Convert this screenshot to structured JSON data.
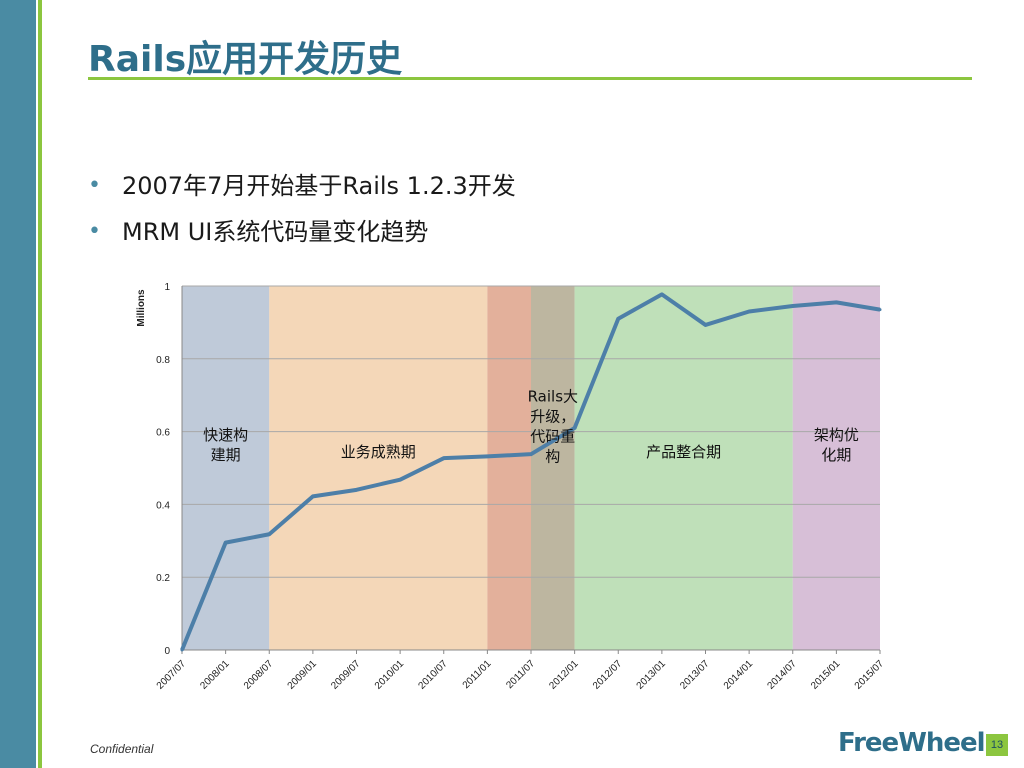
{
  "slide": {
    "title": "Rails应用开发历史",
    "bullets": [
      "2007年7月开始基于Rails 1.2.3开发",
      "MRM UI系统代码量变化趋势"
    ],
    "footer": "Confidential",
    "logo": "FreeWheel",
    "page_number": "13",
    "colors": {
      "sidebar": "#4a8ba3",
      "accent_green": "#8cc63f",
      "title": "#2e6e8a"
    }
  },
  "chart_data": {
    "type": "line",
    "title": "",
    "xlabel": "",
    "ylabel": "Millions",
    "ylim": [
      0,
      1
    ],
    "yticks": [
      "0",
      "0.2",
      "0.4",
      "0.6",
      "0.8",
      "1"
    ],
    "grid": true,
    "categories": [
      "2007/07",
      "2008/01",
      "2008/07",
      "2009/01",
      "2009/07",
      "2010/01",
      "2010/07",
      "2011/01",
      "2011/07",
      "2012/01",
      "2012/07",
      "2013/01",
      "2013/07",
      "2014/01",
      "2014/07",
      "2015/01",
      "2015/07"
    ],
    "series": [
      {
        "values": [
          0,
          0.295,
          0.318,
          0.422,
          0.44,
          0.468,
          0.527,
          0.532,
          0.538,
          0.61,
          0.91,
          0.977,
          0.893,
          0.93,
          0.945,
          0.955,
          0.935
        ],
        "color": "#4d7fa8"
      }
    ],
    "phases": [
      {
        "label": "快速构\n建期",
        "start": "2007/07",
        "end": "2008/07",
        "color": "#aab8cc"
      },
      {
        "label": "业务成熟期",
        "start": "2008/07",
        "end": "2011/01",
        "color": "#f0c9a0"
      },
      {
        "label": "",
        "start": "2011/01",
        "end": "2011/07",
        "color": "#d9957a"
      },
      {
        "label": "Rails大\n升级，\n代码重\n构",
        "start": "2011/07",
        "end": "2012/01",
        "color": "#a79d80"
      },
      {
        "label": "产品整合期",
        "start": "2012/01",
        "end": "2014/07",
        "color": "#a9d5a1"
      },
      {
        "label": "架构优\n化期",
        "start": "2014/07",
        "end": "2015/07",
        "color": "#c9a9c9"
      }
    ]
  }
}
